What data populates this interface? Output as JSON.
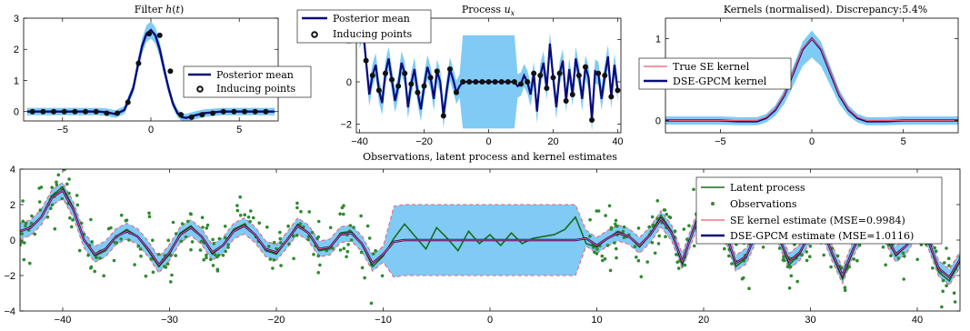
{
  "colors": {
    "posterior_mean": "#0a0a7a",
    "band": "#7fcbf5",
    "inducing_points": "#111111",
    "true_se": "#f05a6e",
    "latent": "#1b6b1b",
    "observations": "#2f8a2f"
  },
  "chart_data": [
    {
      "id": "filter",
      "type": "line",
      "title": "Filter h(t)",
      "xlim": [
        -7.2,
        7.2
      ],
      "ylim": [
        -0.3,
        3.0
      ],
      "xticks": [
        -5,
        0,
        5
      ],
      "yticks": [
        0,
        1,
        2,
        3
      ],
      "legend_position": "right",
      "series": [
        {
          "name": "Posterior mean",
          "kind": "line",
          "color_key": "posterior_mean",
          "x": [
            -7,
            -6,
            -5,
            -4,
            -3,
            -2.5,
            -2,
            -1.5,
            -1,
            -0.75,
            -0.5,
            -0.25,
            0,
            0.25,
            0.5,
            0.75,
            1,
            1.25,
            1.5,
            1.75,
            2,
            2.5,
            3,
            4,
            5,
            6,
            7
          ],
          "y": [
            0,
            0,
            0,
            0,
            0,
            -0.02,
            -0.08,
            0.05,
            0.75,
            1.45,
            2.1,
            2.5,
            2.62,
            2.45,
            2.0,
            1.35,
            0.75,
            0.25,
            -0.05,
            -0.18,
            -0.2,
            -0.12,
            -0.05,
            0,
            0,
            0,
            0
          ]
        },
        {
          "name": "Inducing points",
          "kind": "markers",
          "color_key": "inducing_points",
          "x": [
            -6.7,
            -6.1,
            -5.5,
            -4.9,
            -4.3,
            -3.7,
            -3.1,
            -2.5,
            -1.9,
            -1.3,
            -0.7,
            -0.1,
            0.5,
            1.1,
            1.7,
            2.3,
            2.9,
            3.5,
            4.1,
            4.7,
            5.3,
            5.9,
            6.5
          ],
          "y": [
            0,
            0,
            0,
            0,
            0,
            0,
            0,
            -0.05,
            -0.05,
            0.3,
            1.55,
            2.5,
            2.45,
            1.3,
            -0.1,
            -0.18,
            -0.1,
            -0.05,
            0,
            0,
            0,
            0,
            0
          ]
        }
      ]
    },
    {
      "id": "process",
      "type": "line",
      "title": "Process u_x",
      "xlim": [
        -41,
        41
      ],
      "ylim": [
        -2.4,
        3.0
      ],
      "xticks": [
        -40,
        -20,
        0,
        20,
        40
      ],
      "yticks": [
        -2,
        0,
        2
      ],
      "legend_position": "top-left",
      "series": [
        {
          "name": "Posterior mean",
          "kind": "line",
          "color_key": "posterior_mean",
          "x": [
            -40,
            -39,
            -38,
            -37,
            -36,
            -35,
            -34,
            -33,
            -32,
            -31,
            -30,
            -29,
            -28,
            -27,
            -26,
            -25,
            -24,
            -23,
            -22,
            -21,
            -20,
            -19,
            -18,
            -17,
            -16,
            -15,
            -14,
            -13,
            -12,
            -11,
            -10,
            -9,
            -8,
            -7,
            -6,
            -5,
            -4,
            -3,
            -2,
            -1,
            0,
            1,
            2,
            3,
            4,
            5,
            6,
            7,
            8,
            9,
            10,
            11,
            12,
            13,
            14,
            15,
            16,
            17,
            18,
            19,
            20,
            21,
            22,
            23,
            24,
            25,
            26,
            27,
            28,
            29,
            30,
            31,
            32,
            33,
            34,
            35,
            36,
            37,
            38,
            39,
            40
          ],
          "y": [
            2.1,
            2.6,
            1.0,
            -0.6,
            0.3,
            0.8,
            -0.4,
            -1.0,
            0.4,
            1.1,
            0.1,
            -0.9,
            -0.2,
            0.9,
            0.4,
            -1.2,
            -0.1,
            0.6,
            -0.5,
            -1.3,
            -0.2,
            0.7,
            0.2,
            -0.8,
            0.5,
            0.0,
            -1.6,
            -0.4,
            0.6,
            0.1,
            -0.5,
            -0.2,
            0.0,
            0.0,
            0.0,
            0.0,
            0.0,
            0.0,
            0.0,
            0.0,
            0.0,
            0.0,
            0.0,
            0.0,
            0.0,
            0.0,
            0.0,
            0.0,
            0.0,
            -0.2,
            -0.1,
            0.3,
            0.0,
            -0.6,
            0.4,
            -1.4,
            0.3,
            0.9,
            -0.3,
            1.8,
            0.2,
            -1.2,
            0.4,
            1.0,
            -0.9,
            0.6,
            -0.6,
            1.1,
            0.3,
            -0.8,
            0.7,
            0.2,
            -1.8,
            0.5,
            0.4,
            -0.8,
            0.3,
            1.2,
            -0.7,
            0.8,
            -0.4
          ]
        },
        {
          "name": "Inducing points",
          "kind": "markers",
          "color_key": "inducing_points",
          "x": [
            -40,
            -38,
            -36,
            -34,
            -32,
            -30,
            -28,
            -26,
            -24,
            -22,
            -20,
            -18,
            -16,
            -14,
            -12,
            -10,
            -8,
            -6,
            -4,
            -2,
            0,
            2,
            4,
            6,
            8,
            10,
            12,
            14,
            16,
            18,
            20,
            22,
            24,
            26,
            28,
            30,
            32,
            34,
            36,
            38,
            40
          ],
          "y": [
            2.1,
            1.0,
            0.3,
            -0.4,
            0.4,
            0.1,
            -0.2,
            0.4,
            -0.1,
            -0.5,
            -0.2,
            0.2,
            0.5,
            -1.6,
            0.6,
            -0.5,
            0.0,
            0.0,
            0.0,
            0.0,
            0.0,
            0.0,
            0.0,
            0.0,
            0.0,
            -0.1,
            0.0,
            0.4,
            0.3,
            -0.3,
            0.2,
            0.4,
            -0.9,
            -0.6,
            0.3,
            0.7,
            -1.8,
            0.4,
            0.3,
            -0.7,
            -0.4
          ]
        }
      ]
    },
    {
      "id": "kernels",
      "type": "line",
      "title": "Kernels (normalised). Discrepancy:5.4%",
      "xlim": [
        -8,
        8
      ],
      "ylim": [
        -0.15,
        1.25
      ],
      "xticks": [
        -5,
        0,
        5
      ],
      "yticks": [
        0,
        1
      ],
      "legend_position": "left",
      "series": [
        {
          "name": "True SE kernel",
          "kind": "line",
          "color_key": "true_se",
          "x": [
            -8,
            -7,
            -6,
            -5,
            -4,
            -3,
            -2.5,
            -2,
            -1.5,
            -1,
            -0.5,
            0,
            0.5,
            1,
            1.5,
            2,
            2.5,
            3,
            4,
            5,
            6,
            7,
            8
          ],
          "y": [
            0,
            0,
            0,
            0,
            0,
            0.0,
            0.04,
            0.14,
            0.32,
            0.6,
            0.88,
            1.0,
            0.88,
            0.6,
            0.32,
            0.14,
            0.04,
            0.0,
            0,
            0,
            0,
            0,
            0
          ]
        },
        {
          "name": "DSE-GPCM kernel",
          "kind": "line",
          "color_key": "posterior_mean",
          "x": [
            -8,
            -7,
            -6,
            -5,
            -4,
            -3,
            -2.5,
            -2,
            -1.5,
            -1,
            -0.5,
            0,
            0.5,
            1,
            1.5,
            2,
            2.5,
            3,
            4,
            5,
            6,
            7,
            8
          ],
          "y": [
            0,
            0,
            0,
            0,
            -0.01,
            -0.01,
            0.03,
            0.13,
            0.31,
            0.59,
            0.87,
            1.0,
            0.87,
            0.59,
            0.31,
            0.13,
            0.03,
            -0.01,
            -0.01,
            0,
            0,
            0,
            0
          ]
        }
      ]
    },
    {
      "id": "observations",
      "type": "line",
      "title": "Observations, latent process and kernel estimates",
      "xlim": [
        -44,
        44
      ],
      "ylim": [
        -4,
        4
      ],
      "xticks": [
        -40,
        -30,
        -20,
        -10,
        0,
        10,
        20,
        30,
        40
      ],
      "yticks": [
        -4,
        -2,
        0,
        2,
        4
      ],
      "legend_position": "top-right",
      "series": [
        {
          "name": "Latent process",
          "kind": "line",
          "color_key": "latent"
        },
        {
          "name": "Observations",
          "kind": "markers",
          "color_key": "observations"
        },
        {
          "name": "SE kernel estimate (MSE=0.9984)",
          "kind": "line",
          "color_key": "true_se"
        },
        {
          "name": "DSE-GPCM estimate (MSE=1.0116)",
          "kind": "line",
          "color_key": "posterior_mean"
        }
      ],
      "x": [
        -44,
        -43,
        -42,
        -41,
        -40,
        -39,
        -38,
        -37,
        -36,
        -35,
        -34,
        -33,
        -32,
        -31,
        -30,
        -29,
        -28,
        -27,
        -26,
        -25,
        -24,
        -23,
        -22,
        -21,
        -20,
        -19,
        -18,
        -17,
        -16,
        -15,
        -14,
        -13,
        -12,
        -11,
        -10,
        -9,
        -8,
        -7,
        -6,
        -5,
        -4,
        -3,
        -2,
        -1,
        0,
        1,
        2,
        3,
        4,
        5,
        6,
        7,
        8,
        9,
        10,
        11,
        12,
        13,
        14,
        15,
        16,
        17,
        18,
        19,
        20,
        21,
        22,
        23,
        24,
        25,
        26,
        27,
        28,
        29,
        30,
        31,
        32,
        33,
        34,
        35,
        36,
        37,
        38,
        39,
        40,
        41,
        42,
        43,
        44
      ],
      "latent_y": [
        0.5,
        0.7,
        1.3,
        2.5,
        3.0,
        1.8,
        0.0,
        -0.9,
        -0.6,
        0.2,
        0.6,
        0.2,
        -0.6,
        -1.5,
        -0.8,
        0.4,
        0.8,
        0.2,
        -0.8,
        -0.3,
        0.6,
        0.9,
        0.3,
        -0.6,
        -0.8,
        0.0,
        0.9,
        0.4,
        -0.6,
        -0.5,
        0.4,
        0.5,
        -0.2,
        -1.5,
        -0.9,
        0.1,
        0.9,
        0.2,
        -0.5,
        0.7,
        0.1,
        -0.6,
        0.5,
        -0.2,
        0.3,
        -0.3,
        0.4,
        -0.2,
        0.1,
        0.2,
        0.3,
        0.6,
        1.3,
        -0.2,
        -0.4,
        0.1,
        0.5,
        0.2,
        -0.4,
        0.3,
        1.4,
        0.5,
        -1.4,
        0.6,
        2.2,
        2.8,
        0.6,
        -1.5,
        -1.0,
        0.6,
        1.1,
        0.2,
        -1.4,
        -0.8,
        0.5,
        0.9,
        -0.8,
        -2.2,
        -0.6,
        0.8,
        1.3,
        0.3,
        -0.9,
        -0.3,
        0.8,
        0.0,
        -1.8,
        -2.3,
        -1.2
      ],
      "estimate_y": [
        0.5,
        0.7,
        1.3,
        2.4,
        2.8,
        1.7,
        0.0,
        -0.8,
        -0.5,
        0.2,
        0.5,
        0.2,
        -0.5,
        -1.4,
        -0.7,
        0.3,
        0.7,
        0.2,
        -0.7,
        -0.3,
        0.5,
        0.8,
        0.3,
        -0.5,
        -0.7,
        0.0,
        0.8,
        0.4,
        -0.5,
        -0.4,
        0.3,
        0.4,
        -0.2,
        -1.3,
        -0.8,
        -0.1,
        0.0,
        0.0,
        0.0,
        0.0,
        0.0,
        0.0,
        0.0,
        0.0,
        0.0,
        0.0,
        0.0,
        0.0,
        0.0,
        0.0,
        0.0,
        0.0,
        0.0,
        0.1,
        -0.3,
        0.1,
        0.4,
        0.2,
        -0.3,
        0.3,
        1.2,
        0.4,
        -1.2,
        0.5,
        2.0,
        2.5,
        0.5,
        -1.3,
        -0.9,
        0.5,
        1.0,
        0.2,
        -1.2,
        -0.7,
        0.4,
        0.8,
        -0.7,
        -2.0,
        -0.5,
        0.7,
        1.1,
        0.3,
        -0.8,
        -0.3,
        0.7,
        0.0,
        -1.6,
        -2.1,
        -1.1
      ]
    }
  ]
}
